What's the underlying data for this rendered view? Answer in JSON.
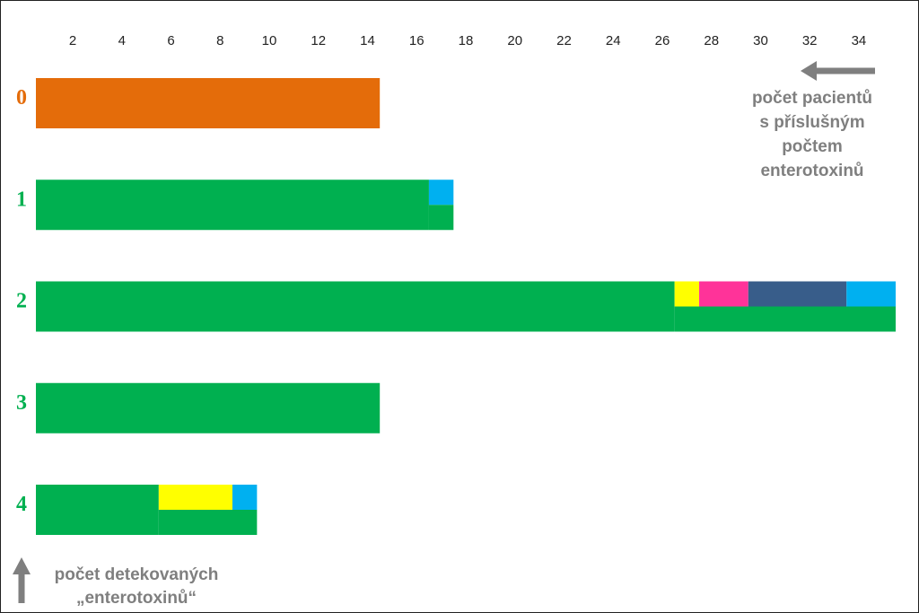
{
  "chart_data": {
    "type": "bar",
    "orientation": "horizontal",
    "x_ticks": [
      2,
      4,
      6,
      8,
      10,
      12,
      14,
      16,
      18,
      20,
      22,
      24,
      26,
      28,
      30,
      32,
      34
    ],
    "xlim": [
      0.5,
      35.5
    ],
    "categories": [
      "0",
      "1",
      "2",
      "3",
      "4"
    ],
    "category_colors": [
      "#e46c0a",
      "#00b050",
      "#00b050",
      "#00b050",
      "#00b050"
    ],
    "bars": [
      {
        "category": "0",
        "segments": [
          {
            "start": 0.5,
            "end": 14.5,
            "color": "#e46c0a"
          }
        ]
      },
      {
        "category": "1",
        "segments": [
          {
            "start": 0.5,
            "end": 16.5,
            "color": "#00b050",
            "half": "full"
          },
          {
            "start": 16.5,
            "end": 17.5,
            "color": "#00b0f0",
            "half": "top"
          },
          {
            "start": 16.5,
            "end": 17.5,
            "color": "#00b050",
            "half": "bottom"
          }
        ]
      },
      {
        "category": "2",
        "segments": [
          {
            "start": 0.5,
            "end": 26.5,
            "color": "#00b050",
            "half": "full"
          },
          {
            "start": 26.5,
            "end": 27.5,
            "color": "#ffff00",
            "half": "top"
          },
          {
            "start": 27.5,
            "end": 29.5,
            "color": "#ff3399",
            "half": "top"
          },
          {
            "start": 29.5,
            "end": 33.5,
            "color": "#385d8a",
            "half": "top"
          },
          {
            "start": 33.5,
            "end": 35.5,
            "color": "#00b0f0",
            "half": "top"
          },
          {
            "start": 26.5,
            "end": 35.5,
            "color": "#00b050",
            "half": "bottom"
          }
        ]
      },
      {
        "category": "3",
        "segments": [
          {
            "start": 0.5,
            "end": 14.5,
            "color": "#00b050"
          }
        ]
      },
      {
        "category": "4",
        "segments": [
          {
            "start": 0.5,
            "end": 5.5,
            "color": "#00b050",
            "half": "full"
          },
          {
            "start": 5.5,
            "end": 8.5,
            "color": "#ffff00",
            "half": "top"
          },
          {
            "start": 8.5,
            "end": 9.5,
            "color": "#00b0f0",
            "half": "top"
          },
          {
            "start": 5.5,
            "end": 9.5,
            "color": "#00b050",
            "half": "bottom"
          }
        ]
      }
    ],
    "x_note": [
      "počet pacientů",
      "s příslušným",
      "počtem",
      "enterotoxinů"
    ],
    "y_note": [
      "počet detekovaných",
      "„enterotoxinů“"
    ],
    "arrow_color": "#7f7f7f",
    "grid": false,
    "legend": "none"
  }
}
